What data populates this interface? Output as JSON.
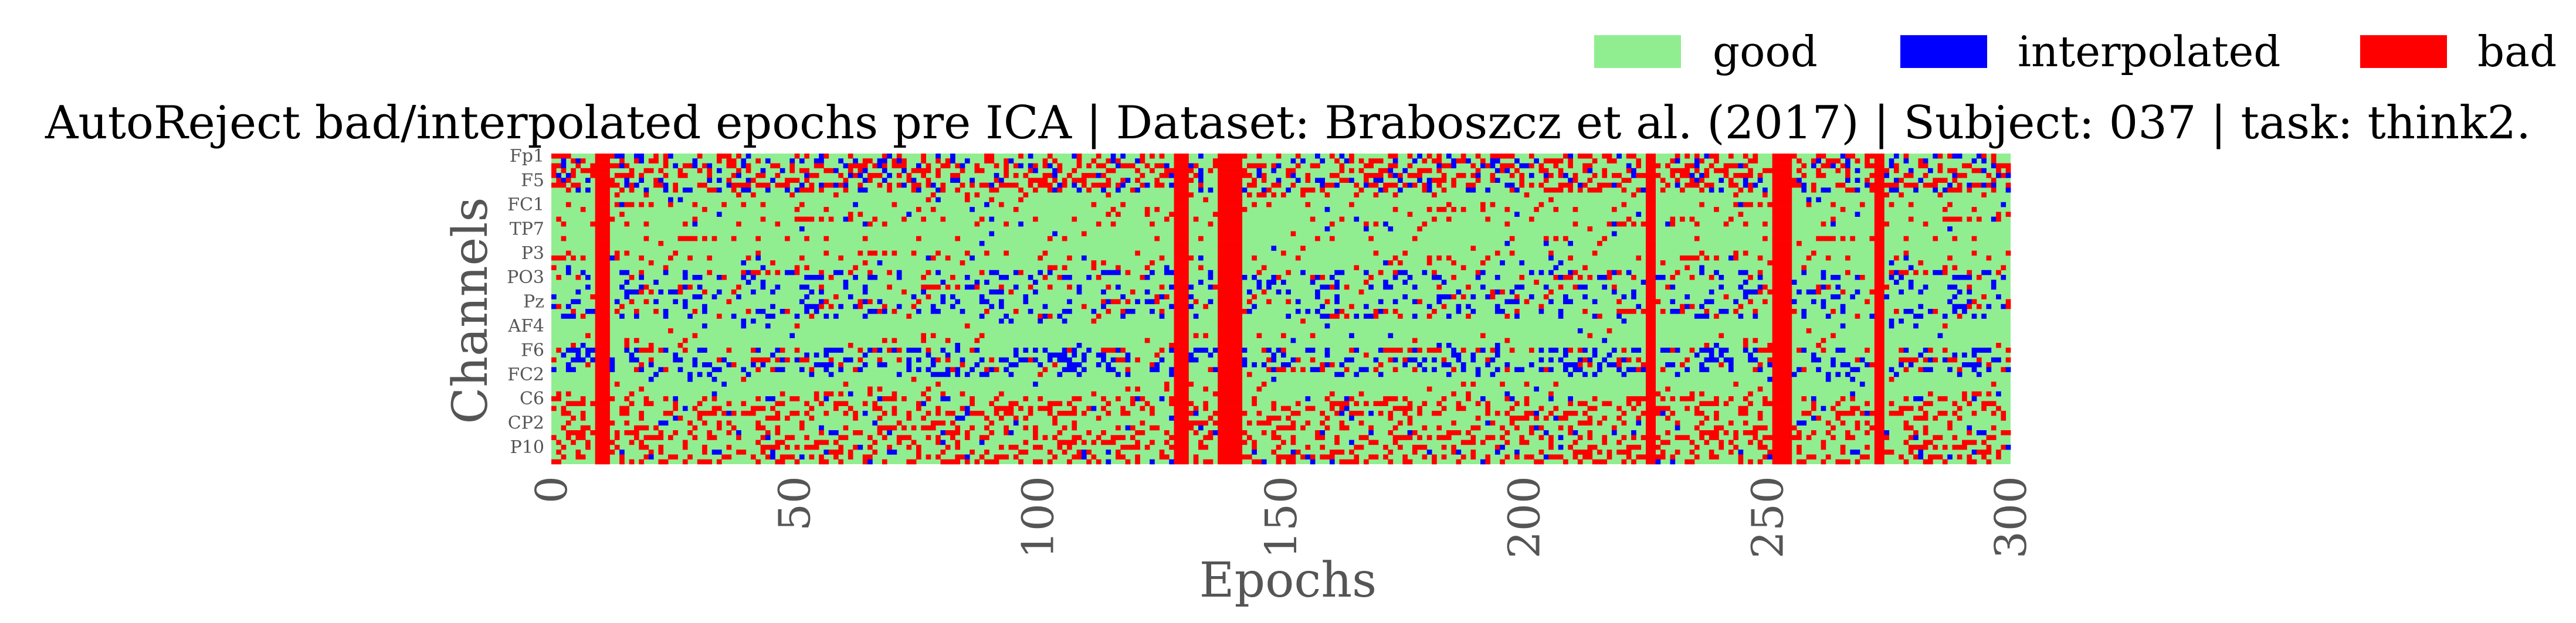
{
  "chart_data": {
    "type": "heatmap",
    "title": "AutoReject bad/interpolated epochs pre ICA | Dataset: Braboszcz et al. (2017) | Subject: 037 | task: think2.",
    "xlabel": "Epochs",
    "ylabel": "Channels",
    "xlim": [
      0,
      300
    ],
    "x_ticks": [
      "0",
      "50",
      "100",
      "150",
      "200",
      "250",
      "300"
    ],
    "y_ticks": [
      "Fp1",
      "F5",
      "FC1",
      "TP7",
      "P3",
      "PO3",
      "Pz",
      "AF4",
      "F6",
      "FC2",
      "C6",
      "CP2",
      "P10"
    ],
    "legend": [
      {
        "label": "good",
        "color": "#90ee90"
      },
      {
        "label": "interpolated",
        "color": "#0000ff"
      },
      {
        "label": "bad",
        "color": "#ff0000"
      }
    ],
    "legend_position": "top-right",
    "grid": false,
    "n_epochs": 300,
    "n_channels": 64,
    "bad_epochs": [
      9,
      10,
      11,
      128,
      129,
      130,
      137,
      138,
      139,
      140,
      141,
      225,
      226,
      251,
      252,
      253,
      254,
      272,
      273
    ]
  }
}
